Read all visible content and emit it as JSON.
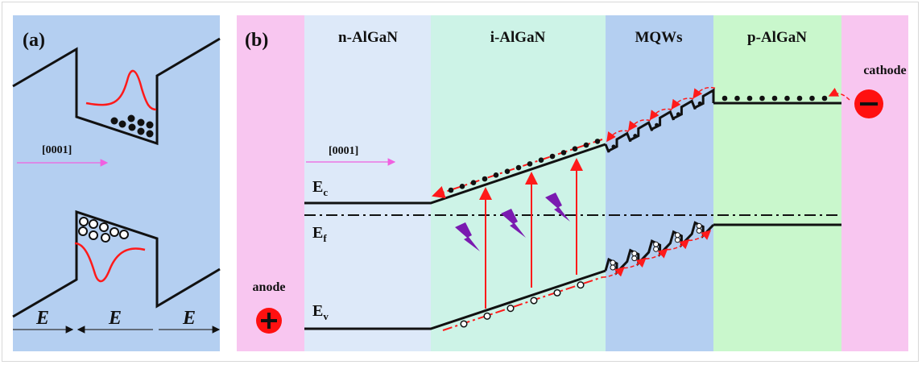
{
  "panel_a": {
    "label": "(a)",
    "direction": "[0001]",
    "field_labels": [
      "E",
      "E",
      "E"
    ]
  },
  "panel_b": {
    "label": "(b)",
    "regions": [
      "n-AlGaN",
      "i-AlGaN",
      "MQWs",
      "p-AlGaN"
    ],
    "direction": "[0001]",
    "band_labels": {
      "ec": "E",
      "ec_sub": "c",
      "ef": "E",
      "ef_sub": "f",
      "ev": "E",
      "ev_sub": "v"
    },
    "anode": "anode",
    "cathode": "cathode"
  },
  "colors": {
    "panel_a_bg": "#b4cff1",
    "contact": "#f8c6f0",
    "n_algan": "#dde9f9",
    "i_algan": "#cdf3e7",
    "mqws": "#b4cff1",
    "p_algan": "#c9f7cc",
    "arrow_red": "#ff1a1a",
    "photon": "#7a1ab0"
  }
}
